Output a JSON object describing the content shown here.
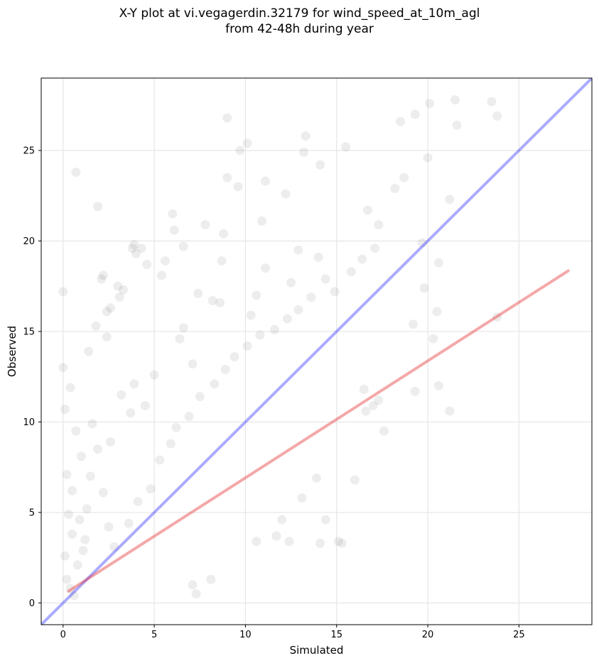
{
  "chart_data": {
    "type": "scatter",
    "title_lines": [
      "X-Y plot at vi.vegagerdin.32179 for wind_speed_at_10m_agl",
      "from 42-48h during year"
    ],
    "xlabel": "Simulated",
    "ylabel": "Observed",
    "xlim": [
      -1.2,
      29
    ],
    "ylim": [
      -1.2,
      29
    ],
    "xticks": [
      0,
      5,
      10,
      15,
      20,
      25
    ],
    "yticks": [
      0,
      5,
      10,
      15,
      20,
      25
    ],
    "grid": true,
    "point_color": "#000000",
    "point_alpha": 0.07,
    "identity_line": {
      "from": [
        -1.2,
        -1.2
      ],
      "to": [
        29,
        29
      ],
      "color": "#0000ff",
      "alpha": 0.33
    },
    "regression_line": {
      "from": [
        0.3,
        0.65
      ],
      "to": [
        27.7,
        18.35
      ],
      "color": "#e31a1c",
      "alpha": 0.38
    },
    "points": [
      [
        23.8,
        15.8
      ],
      [
        23.5,
        27.7
      ],
      [
        23.8,
        26.9
      ],
      [
        21.5,
        27.8
      ],
      [
        21.6,
        26.4
      ],
      [
        21.2,
        10.6
      ],
      [
        21.2,
        22.3
      ],
      [
        20.6,
        12.0
      ],
      [
        20.6,
        18.8
      ],
      [
        20.5,
        16.1
      ],
      [
        20.3,
        14.6
      ],
      [
        20.1,
        27.6
      ],
      [
        20.0,
        24.6
      ],
      [
        19.3,
        11.7
      ],
      [
        19.3,
        27.0
      ],
      [
        19.2,
        15.4
      ],
      [
        18.7,
        23.5
      ],
      [
        18.5,
        26.6
      ],
      [
        17.6,
        9.5
      ],
      [
        17.3,
        11.2
      ],
      [
        17.0,
        10.9
      ],
      [
        16.6,
        10.6
      ],
      [
        16.0,
        6.8
      ],
      [
        16.5,
        11.8
      ],
      [
        15.3,
        3.3
      ],
      [
        15.1,
        3.4
      ],
      [
        14.4,
        4.6
      ],
      [
        14.1,
        3.3
      ],
      [
        13.3,
        25.8
      ],
      [
        13.1,
        5.8
      ],
      [
        13.9,
        6.9
      ],
      [
        12.4,
        3.4
      ],
      [
        12.0,
        4.6
      ],
      [
        11.7,
        3.7
      ],
      [
        10.6,
        3.4
      ],
      [
        10.1,
        25.4
      ],
      [
        9.6,
        23.0
      ],
      [
        9.7,
        25.0
      ],
      [
        9.0,
        23.5
      ],
      [
        9.0,
        26.8
      ],
      [
        8.8,
        20.4
      ],
      [
        8.7,
        18.9
      ],
      [
        8.1,
        1.3
      ],
      [
        7.8,
        20.9
      ],
      [
        7.3,
        0.5
      ],
      [
        7.1,
        1.0
      ],
      [
        6.6,
        19.7
      ],
      [
        6.1,
        20.6
      ],
      [
        5.6,
        18.9
      ],
      [
        5.4,
        18.1
      ],
      [
        4.6,
        18.7
      ],
      [
        4.3,
        19.6
      ],
      [
        4.0,
        19.3
      ],
      [
        3.9,
        19.8
      ],
      [
        3.3,
        17.3
      ],
      [
        3.0,
        17.5
      ],
      [
        2.6,
        16.3
      ],
      [
        2.4,
        16.1
      ],
      [
        2.4,
        14.7
      ],
      [
        2.1,
        17.9
      ],
      [
        1.8,
        15.3
      ],
      [
        1.4,
        13.9
      ],
      [
        0.0,
        17.2
      ],
      [
        0.0,
        13.0
      ],
      [
        0.1,
        10.7
      ],
      [
        0.4,
        11.9
      ],
      [
        1.9,
        21.9
      ],
      [
        0.7,
        23.8
      ],
      [
        2.2,
        18.1
      ],
      [
        3.8,
        19.6
      ],
      [
        6.0,
        21.5
      ],
      [
        3.1,
        16.9
      ],
      [
        10.3,
        15.9
      ],
      [
        10.6,
        17.0
      ],
      [
        14.4,
        17.9
      ],
      [
        12.5,
        17.7
      ],
      [
        11.1,
        18.5
      ],
      [
        14.0,
        19.1
      ],
      [
        19.8,
        17.4
      ],
      [
        16.7,
        21.7
      ],
      [
        17.3,
        20.9
      ],
      [
        18.2,
        22.9
      ],
      [
        19.7,
        19.9
      ],
      [
        15.5,
        25.2
      ],
      [
        14.1,
        24.2
      ],
      [
        13.2,
        24.9
      ],
      [
        12.2,
        22.6
      ],
      [
        11.1,
        23.3
      ],
      [
        10.9,
        21.1
      ],
      [
        12.9,
        19.5
      ],
      [
        8.2,
        16.7
      ],
      [
        7.4,
        17.1
      ],
      [
        8.6,
        16.6
      ],
      [
        6.4,
        14.6
      ],
      [
        6.6,
        15.2
      ],
      [
        7.1,
        13.2
      ],
      [
        5.0,
        12.6
      ],
      [
        4.5,
        10.9
      ],
      [
        3.7,
        10.5
      ],
      [
        3.9,
        12.1
      ],
      [
        3.2,
        11.5
      ],
      [
        2.6,
        8.9
      ],
      [
        1.5,
        7.0
      ],
      [
        1.9,
        8.5
      ],
      [
        2.2,
        6.1
      ],
      [
        1.3,
        5.2
      ],
      [
        0.9,
        4.6
      ],
      [
        0.5,
        3.8
      ],
      [
        0.1,
        2.6
      ],
      [
        0.2,
        1.3
      ],
      [
        0.4,
        0.8
      ],
      [
        0.6,
        0.4
      ],
      [
        0.8,
        2.1
      ],
      [
        1.1,
        2.9
      ],
      [
        0.3,
        4.9
      ],
      [
        0.5,
        6.2
      ],
      [
        0.2,
        7.1
      ],
      [
        1.0,
        8.1
      ],
      [
        0.7,
        9.5
      ],
      [
        1.6,
        9.9
      ],
      [
        1.2,
        3.5
      ],
      [
        2.5,
        4.2
      ],
      [
        2.8,
        3.1
      ],
      [
        3.6,
        4.4
      ],
      [
        4.1,
        5.6
      ],
      [
        4.8,
        6.3
      ],
      [
        5.3,
        7.9
      ],
      [
        5.9,
        8.8
      ],
      [
        6.2,
        9.7
      ],
      [
        6.9,
        10.3
      ],
      [
        7.5,
        11.4
      ],
      [
        8.3,
        12.1
      ],
      [
        8.9,
        12.9
      ],
      [
        9.4,
        13.6
      ],
      [
        10.1,
        14.2
      ],
      [
        10.8,
        14.8
      ],
      [
        11.6,
        15.1
      ],
      [
        12.3,
        15.7
      ],
      [
        12.9,
        16.2
      ],
      [
        13.6,
        16.9
      ],
      [
        14.9,
        17.2
      ],
      [
        15.8,
        18.3
      ],
      [
        16.4,
        19.0
      ],
      [
        17.1,
        19.6
      ]
    ]
  }
}
